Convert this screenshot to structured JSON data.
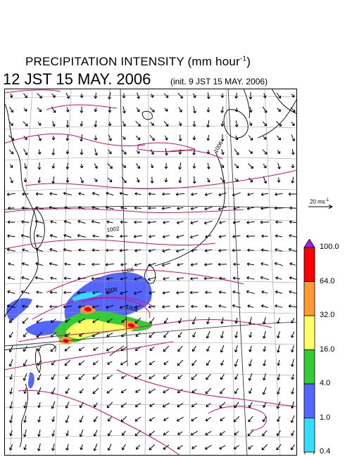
{
  "title": {
    "main": "PRECIPITATION INTENSITY (mm hour",
    "exponent": "-1",
    "close": ")"
  },
  "valid_time": "12 JST 15 MAY. 2006",
  "init_time": "(init. 9 JST 15 MAY. 2006)",
  "wind_scale": {
    "value": "20 ms",
    "exponent": "-1"
  },
  "colorbar": {
    "levels": [
      "100.0",
      "64.0",
      "32.0",
      "16.0",
      "4.0",
      "1.0",
      "0.4"
    ],
    "colors": [
      "#a020f0",
      "#ff0000",
      "#ff9933",
      "#ffff66",
      "#33cc33",
      "#5566ff",
      "#33ddff",
      "#ffffff"
    ]
  },
  "isobar_labels": [
    "1006",
    "1002",
    "1006",
    "1008",
    "1004"
  ],
  "colors": {
    "isobar": "#cc1177",
    "coast": "#000000",
    "grid": "#999999",
    "arrow": "#000000"
  }
}
